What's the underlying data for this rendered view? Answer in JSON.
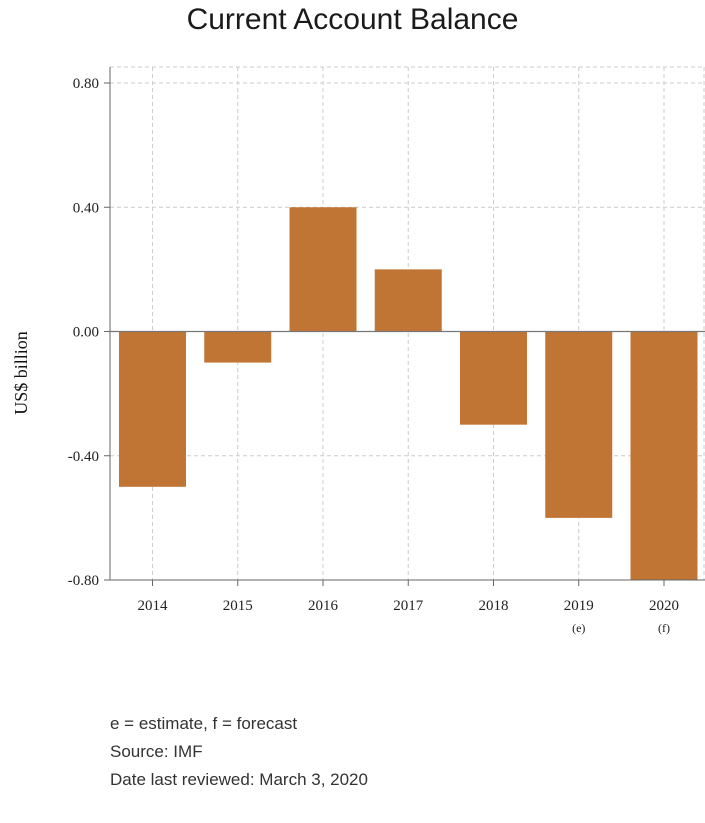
{
  "chart_data": {
    "type": "bar",
    "title": "Current Account Balance",
    "ylabel": "US$ billion",
    "xlabel": "",
    "categories": [
      "2014",
      "2015",
      "2016",
      "2017",
      "2018",
      "2019",
      "2020"
    ],
    "category_notes": [
      "",
      "",
      "",
      "",
      "",
      "(e)",
      "(f)"
    ],
    "values": [
      -0.5,
      -0.1,
      0.4,
      0.2,
      -0.3,
      -0.6,
      -0.8
    ],
    "ylim": [
      -0.8,
      0.8
    ],
    "yticks": [
      "0.80",
      "0.40",
      "0.00",
      "-0.40",
      "-0.80"
    ],
    "grid": true,
    "bar_color": "#c07535"
  },
  "notes": {
    "legend_note": "e = estimate, f = forecast",
    "source": "Source: IMF",
    "reviewed": "Date last reviewed: March 3, 2020"
  }
}
